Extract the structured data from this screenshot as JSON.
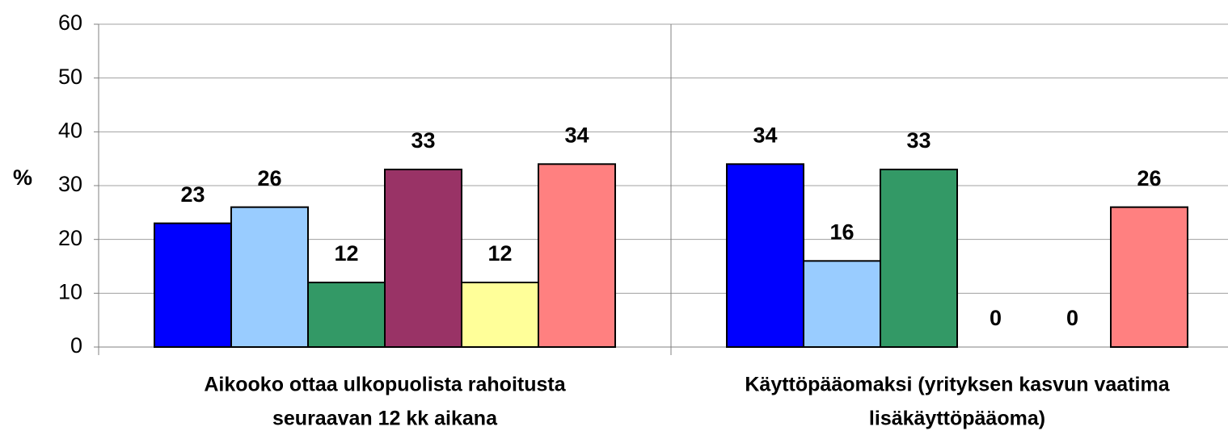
{
  "chart_data": {
    "type": "bar",
    "y_label": "%",
    "categories": [
      [
        "Aikooko ottaa ulkopuolista rahoitusta",
        "seuraavan 12 kk aikana"
      ],
      [
        "Käyttöpääomaksi (yrityksen kasvun vaatima",
        "lisäkäyttöpääoma)"
      ]
    ],
    "series": [
      {
        "color": "#0000ff",
        "values": [
          23,
          34
        ]
      },
      {
        "color": "#99ccff",
        "values": [
          26,
          16
        ]
      },
      {
        "color": "#339966",
        "values": [
          12,
          33
        ]
      },
      {
        "color": "#993366",
        "values": [
          33,
          0
        ]
      },
      {
        "color": "#ffff99",
        "values": [
          12,
          0
        ]
      },
      {
        "color": "#ff8080",
        "values": [
          34,
          26
        ]
      }
    ],
    "ylim": [
      0,
      60
    ],
    "yticks": [
      0,
      10,
      20,
      30,
      40,
      50,
      60
    ],
    "grid": true
  }
}
